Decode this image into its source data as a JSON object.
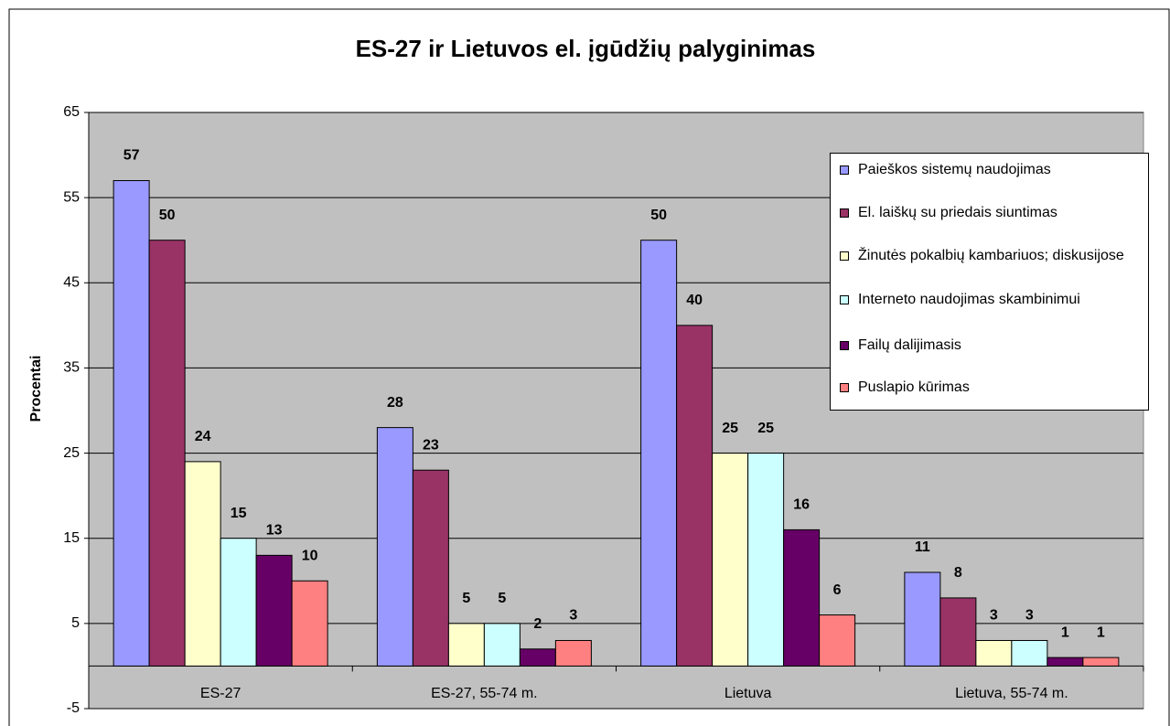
{
  "chart_data": {
    "type": "bar",
    "title": "ES-27 ir Lietuvos el. įgūdžių palyginimas",
    "y_label": "Procentai",
    "categories": [
      "ES-27",
      "ES-27, 55-74 m.",
      "Lietuva",
      "Lietuva, 55-74 m."
    ],
    "series": [
      {
        "name": "Paieškos sistemų naudojimas",
        "color": "#9999FF",
        "values": [
          57,
          28,
          50,
          11
        ]
      },
      {
        "name": "El. laiškų su priedais siuntimas",
        "color": "#993366",
        "values": [
          50,
          23,
          40,
          8
        ]
      },
      {
        "name": "Žinutės pokalbių kambariuos; diskusijose",
        "color": "#FFFFCC",
        "values": [
          24,
          5,
          25,
          3
        ]
      },
      {
        "name": "Interneto naudojimas skambinimui",
        "color": "#CCFFFF",
        "values": [
          15,
          5,
          25,
          3
        ]
      },
      {
        "name": "Failų dalijimasis",
        "color": "#660066",
        "values": [
          13,
          2,
          16,
          1
        ]
      },
      {
        "name": "Puslapio kūrimas",
        "color": "#FF8080",
        "values": [
          10,
          3,
          6,
          1
        ]
      }
    ],
    "ylim": [
      -5,
      65
    ],
    "yticks": [
      -5,
      5,
      15,
      25,
      35,
      45,
      55,
      65
    ],
    "grid": true,
    "legend": "right"
  }
}
